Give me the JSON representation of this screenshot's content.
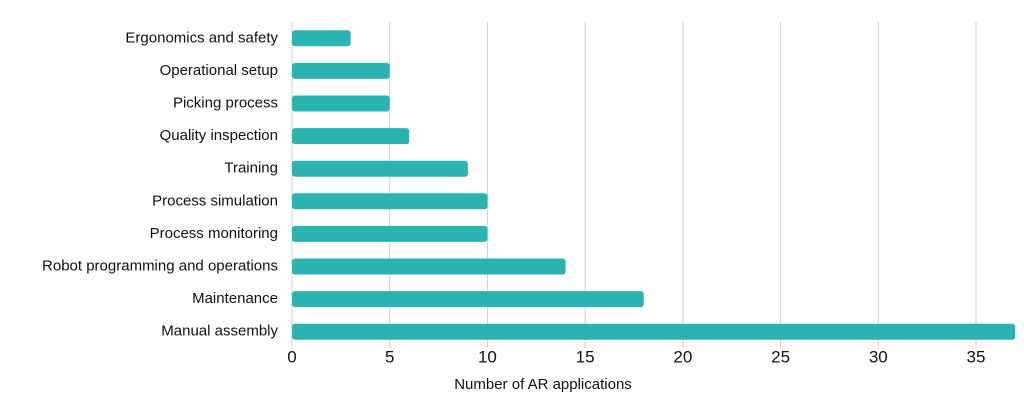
{
  "chart_data": {
    "type": "bar",
    "orientation": "horizontal",
    "x_label": "Number of AR applications",
    "categories": [
      "Ergonomics and safety",
      "Operational setup",
      "Picking process",
      "Quality inspection",
      "Training",
      "Process simulation",
      "Process monitoring",
      "Robot programming and operations",
      "Maintenance",
      "Manual assembly"
    ],
    "values": [
      3,
      5,
      5,
      6,
      9,
      10,
      10,
      14,
      18,
      37
    ],
    "color": "#2ab3b1",
    "xlim": [
      0,
      37.2
    ],
    "xticks": [
      0,
      5,
      10,
      15,
      20,
      25,
      30,
      35
    ],
    "grid": true
  }
}
